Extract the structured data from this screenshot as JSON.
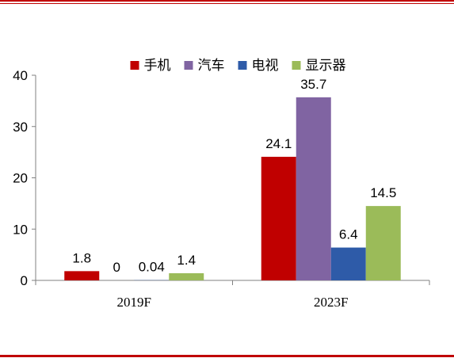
{
  "chart_data": {
    "type": "bar",
    "categories": [
      "2019F",
      "2023F"
    ],
    "series": [
      {
        "name": "手机",
        "color": "#c00000",
        "values": [
          1.8,
          24.1
        ],
        "labels": [
          "1.8",
          "24.1"
        ]
      },
      {
        "name": "汽车",
        "color": "#8064a2",
        "values": [
          0,
          35.7
        ],
        "labels": [
          "0",
          "35.7"
        ]
      },
      {
        "name": "电视",
        "color": "#2e5ba8",
        "values": [
          0.04,
          6.4
        ],
        "labels": [
          "0.04",
          "6.4"
        ]
      },
      {
        "name": "显示器",
        "color": "#9bbb59",
        "values": [
          1.4,
          14.5
        ],
        "labels": [
          "1.4",
          "14.5"
        ]
      }
    ],
    "ylim": [
      0,
      40
    ],
    "yticks": [
      "0",
      "10",
      "20",
      "30",
      "40"
    ],
    "legend_position": "top",
    "grid": false
  }
}
